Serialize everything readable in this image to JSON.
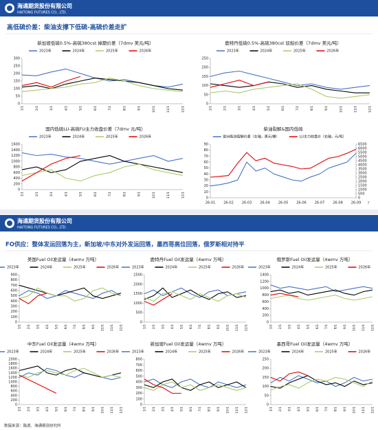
{
  "header": {
    "company_cn": "海通期货股份有限公司",
    "company_en": "HAITONG FUTURES CO., LTD."
  },
  "slide1_title": "高低硫价差：柴油支撑下低硫-高硫价差走扩",
  "page_number": "7",
  "slide2_title": "FO供应：整体发运回落为主，新加坡/中东对外发运回落，墨西哥高位回落，俄罗斯相对持平",
  "source": "数据来源：路透、海通期货研究所",
  "chart_data": [
    {
      "type": "line",
      "title": "新加坡低硫0.5%-高硫380cst 掉期价差（7dmv 美元/吨）",
      "categories": [
        "1/1",
        "2/1",
        "3/1",
        "4/1",
        "5/1",
        "6/1",
        "7/1",
        "8/1",
        "9/1",
        "10/1",
        "11/1",
        "12/1"
      ],
      "ylim": [
        0,
        300
      ],
      "yticks": [
        0,
        50,
        100,
        150,
        200,
        250,
        300
      ],
      "series": [
        {
          "name": "2023年",
          "color": "#4472c4",
          "values": [
            190,
            185,
            210,
            230,
            200,
            170,
            150,
            160,
            140,
            120,
            110,
            130
          ]
        },
        {
          "name": "2024年",
          "color": "#000000",
          "values": [
            110,
            120,
            100,
            130,
            150,
            170,
            160,
            150,
            140,
            120,
            100,
            90
          ]
        },
        {
          "name": "2025年",
          "color": "#a9c96a",
          "values": [
            80,
            90,
            100,
            110,
            130,
            140,
            170,
            150,
            120,
            100,
            90,
            80
          ]
        },
        {
          "name": "2026年",
          "color": "#e00000",
          "values": [
            120,
            140,
            110,
            150,
            180,
            null,
            null,
            null,
            null,
            null,
            null,
            null
          ]
        }
      ]
    },
    {
      "type": "line",
      "title": "鹿特丹低硫0.5%-高硫380cst 驳船价差（7dmv 美元/吨）",
      "categories": [
        "1/1",
        "2/1",
        "3/1",
        "4/1",
        "5/1",
        "6/1",
        "7/1",
        "8/1",
        "9/1",
        "10/1",
        "11/1",
        "12/1"
      ],
      "ylim": [
        0,
        250
      ],
      "yticks": [
        0,
        50,
        100,
        150,
        200,
        250
      ],
      "series": [
        {
          "name": "2023年",
          "color": "#4472c4",
          "values": [
            150,
            170,
            180,
            160,
            140,
            120,
            100,
            110,
            90,
            80,
            90,
            100
          ]
        },
        {
          "name": "2024年",
          "color": "#000000",
          "values": [
            110,
            100,
            90,
            100,
            120,
            110,
            90,
            100,
            80,
            70,
            60,
            60
          ]
        },
        {
          "name": "2025年",
          "color": "#a9c96a",
          "values": [
            60,
            70,
            60,
            80,
            90,
            100,
            110,
            80,
            40,
            30,
            40,
            50
          ]
        },
        {
          "name": "2026年",
          "color": "#e00000",
          "values": [
            90,
            110,
            130,
            100,
            120,
            null,
            null,
            null,
            null,
            null,
            null,
            null
          ]
        }
      ]
    },
    {
      "type": "line",
      "title": "国内低硫LU-高硫FU主力收盘价差（7dmv 元/吨）",
      "categories": [
        "1/1",
        "2/1",
        "3/1",
        "4/1",
        "5/1",
        "6/1",
        "7/1",
        "8/1",
        "9/1",
        "10/1",
        "11/1",
        "12/1"
      ],
      "ylim": [
        0,
        1600
      ],
      "yticks": [
        0,
        200,
        400,
        600,
        800,
        1000,
        1200,
        1400,
        1600
      ],
      "series": [
        {
          "name": "2023年",
          "color": "#4472c4",
          "values": [
            1300,
            1200,
            1250,
            1150,
            1100,
            1000,
            900,
            1000,
            1100,
            1200,
            1000,
            1100
          ]
        },
        {
          "name": "2024年",
          "color": "#000000",
          "values": [
            700,
            800,
            600,
            700,
            1000,
            1100,
            1200,
            1000,
            900,
            800,
            700,
            600
          ]
        },
        {
          "name": "2025年",
          "color": "#a9c96a",
          "values": [
            500,
            600,
            700,
            400,
            300,
            500,
            600,
            800,
            900,
            700,
            600,
            500
          ]
        },
        {
          "name": "2026年",
          "color": "#e00000",
          "values": [
            300,
            600,
            900,
            1100,
            1200,
            null,
            null,
            null,
            null,
            null,
            null,
            null
          ]
        }
      ]
    },
    {
      "type": "line",
      "title": "柴油裂解&国内低硫",
      "categories": [
        "26-01",
        null,
        "26-02",
        null,
        "26-03",
        null,
        "26-04",
        null,
        "26-05",
        null,
        "26-06",
        null,
        "26-07",
        null,
        "26-08",
        null,
        "26-09"
      ],
      "ylim": [
        0,
        90
      ],
      "yticks": [
        0,
        10,
        20,
        30,
        40,
        50,
        60,
        70,
        80,
        90
      ],
      "y2lim": [
        0,
        6500
      ],
      "y2ticks": [
        0,
        500,
        1000,
        1500,
        2000,
        2500,
        3000,
        3500,
        4000,
        4500,
        5000,
        5500,
        6000,
        6500
      ],
      "series": [
        {
          "name": "欧洲柴油裂解价差（左轴，美元/桶）",
          "color": "#4472c4",
          "values": [
            20,
            22,
            25,
            30,
            60,
            45,
            50,
            40,
            35,
            30,
            28,
            35,
            40,
            50,
            55,
            60,
            75
          ]
        },
        {
          "name": "LU主力收盘价（右轴，元/吨）",
          "color": "#e00000",
          "axis": "y2",
          "values": [
            2500,
            2600,
            2700,
            4200,
            5500,
            4500,
            4800,
            4200,
            4000,
            3800,
            3500,
            3600,
            4200,
            4800,
            5000,
            5400,
            5900
          ]
        }
      ]
    },
    {
      "type": "line",
      "title": "美国Fuel Oil发运量（4wmv 万吨）",
      "categories": [
        "1/1",
        "2/1",
        "3/1",
        "4/1",
        "5/1",
        "6/1",
        "7/1",
        "8/1",
        "9/1",
        "10/1",
        "11/1",
        "12/1"
      ],
      "ylim": [
        0,
        900
      ],
      "yticks": [
        0,
        100,
        200,
        300,
        400,
        500,
        600,
        700,
        800,
        900
      ],
      "series": [
        {
          "name": "2023年",
          "color": "#4472c4",
          "values": [
            500,
            600,
            550,
            450,
            500,
            600,
            550,
            500,
            450,
            550,
            600,
            500
          ]
        },
        {
          "name": "2024年",
          "color": "#000000",
          "values": [
            700,
            650,
            600,
            550,
            500,
            550,
            600,
            650,
            500,
            450,
            500,
            550
          ]
        },
        {
          "name": "2025年",
          "color": "#a9c96a",
          "values": [
            450,
            500,
            650,
            550,
            500,
            500,
            400,
            450,
            600,
            650,
            550,
            500
          ]
        },
        {
          "name": "2026年",
          "color": "#e00000",
          "values": [
            450,
            350,
            500,
            550,
            null,
            null,
            null,
            null,
            null,
            null,
            null,
            null
          ]
        }
      ]
    },
    {
      "type": "line",
      "title": "鹿特丹Fuel Oil发运量（4wmv 万吨）",
      "categories": [
        "1/1",
        "2/1",
        "3/1",
        "4/1",
        "5/1",
        "6/1",
        "7/1",
        "8/1",
        "9/1",
        "10/1",
        "11/1",
        "12/1"
      ],
      "ylim": [
        0,
        2500
      ],
      "yticks": [
        0,
        500,
        1000,
        1500,
        2000,
        2500
      ],
      "series": [
        {
          "name": "2023年",
          "color": "#4472c4",
          "values": [
            1500,
            1700,
            1400,
            1600,
            1800,
            1500,
            1300,
            1600,
            1700,
            1400,
            1500,
            1600
          ]
        },
        {
          "name": "2024年",
          "color": "#000000",
          "values": [
            1200,
            1400,
            1800,
            1300,
            1500,
            1700,
            1400,
            1200,
            1500,
            1600,
            1300,
            1400
          ]
        },
        {
          "name": "2025年",
          "color": "#a9c96a",
          "values": [
            1300,
            1100,
            1500,
            1600,
            1400,
            1200,
            1500,
            1300,
            1100,
            1400,
            1500,
            1300
          ]
        },
        {
          "name": "2026年",
          "color": "#e00000",
          "values": [
            1100,
            900,
            1200,
            1500,
            null,
            null,
            null,
            null,
            null,
            null,
            null,
            null
          ]
        }
      ]
    },
    {
      "type": "line",
      "title": "俄罗斯Fuel Oil发运量（4wmv 万吨）",
      "categories": [
        "1/1",
        "2/1",
        "3/1",
        "4/1",
        "5/1",
        "6/1",
        "7/1",
        "8/1",
        "9/1",
        "10/1",
        "11/1",
        "12/1"
      ],
      "ylim": [
        0,
        1400
      ],
      "yticks": [
        0,
        200,
        400,
        600,
        800,
        1000,
        1200,
        1400
      ],
      "series": [
        {
          "name": "2023年",
          "color": "#4472c4",
          "values": [
            1100,
            1000,
            1050,
            1000,
            950,
            1000,
            1050,
            900,
            950,
            1000,
            1050,
            1000
          ]
        },
        {
          "name": "2024年",
          "color": "#000000",
          "values": [
            900,
            950,
            850,
            900,
            800,
            850,
            900,
            950,
            850,
            800,
            900,
            950
          ]
        },
        {
          "name": "2025年",
          "color": "#a9c96a",
          "values": [
            700,
            750,
            800,
            700,
            650,
            700,
            750,
            800,
            700,
            650,
            700,
            750
          ]
        },
        {
          "name": "2026年",
          "color": "#e00000",
          "values": [
            800,
            850,
            800,
            750,
            null,
            null,
            null,
            null,
            null,
            null,
            null,
            null
          ]
        }
      ]
    },
    {
      "type": "line",
      "title": "中东Fuel Oil发运量（4wmv 万吨）",
      "categories": [
        "1/1",
        "2/1",
        "3/1",
        "4/1",
        "5/1",
        "6/1",
        "7/1",
        "8/1",
        "9/1",
        "10/1",
        "11/1",
        "12/1"
      ],
      "ylim": [
        0,
        2000
      ],
      "yticks": [
        0,
        200,
        400,
        600,
        800,
        1000,
        1200,
        1400,
        1600,
        1800,
        2000
      ],
      "series": [
        {
          "name": "2023年",
          "color": "#4472c4",
          "values": [
            1200,
            1400,
            1300,
            1600,
            1500,
            1300,
            1200,
            1400,
            1300,
            1200,
            1100,
            1200
          ]
        },
        {
          "name": "2024年",
          "color": "#000000",
          "values": [
            1500,
            1600,
            1700,
            1400,
            1300,
            1500,
            1600,
            1400,
            1300,
            1200,
            1300,
            1400
          ]
        },
        {
          "name": "2025年",
          "color": "#a9c96a",
          "values": [
            1300,
            1200,
            1400,
            1500,
            1400,
            1300,
            1500,
            1600,
            1400,
            1200,
            1300,
            1200
          ]
        },
        {
          "name": "2026年",
          "color": "#e00000",
          "values": [
            1300,
            1100,
            900,
            700,
            500,
            null,
            null,
            null,
            null,
            null,
            null,
            null
          ]
        }
      ]
    },
    {
      "type": "line",
      "title": "新加坡Fuel Oil发运量（4wmv 万吨）",
      "categories": [
        "1/1",
        "2/1",
        "3/1",
        "4/1",
        "5/1",
        "6/1",
        "7/1",
        "8/1",
        "9/1",
        "10/1",
        "11/1",
        "12/1"
      ],
      "ylim": [
        0,
        800
      ],
      "yticks": [
        0,
        100,
        200,
        300,
        400,
        500,
        600,
        700,
        800
      ],
      "series": [
        {
          "name": "2023年",
          "color": "#4472c4",
          "values": [
            400,
            450,
            350,
            300,
            400,
            450,
            350,
            300,
            400,
            350,
            300,
            350
          ]
        },
        {
          "name": "2024年",
          "color": "#000000",
          "values": [
            350,
            300,
            400,
            450,
            300,
            250,
            350,
            400,
            300,
            350,
            400,
            300
          ]
        },
        {
          "name": "2025年",
          "color": "#a9c96a",
          "values": [
            300,
            250,
            350,
            400,
            300,
            350,
            250,
            300,
            350,
            300,
            250,
            300
          ]
        },
        {
          "name": "2026年",
          "color": "#e00000",
          "values": [
            450,
            350,
            300,
            200,
            200,
            null,
            null,
            null,
            null,
            null,
            null,
            null
          ]
        }
      ]
    },
    {
      "type": "line",
      "title": "墨西哥Fuel Oil发运量（4wmv 万吨）",
      "categories": [
        "1/1",
        "2/1",
        "3/1",
        "4/1",
        "5/1",
        "6/1",
        "7/1",
        "8/1",
        "9/1",
        "10/1",
        "11/1",
        "12/1"
      ],
      "ylim": [
        0,
        250
      ],
      "yticks": [
        0,
        50,
        100,
        150,
        200,
        250
      ],
      "series": [
        {
          "name": "2023年",
          "color": "#4472c4",
          "values": [
            120,
            150,
            130,
            160,
            140,
            120,
            130,
            100,
            120,
            150,
            130,
            140
          ]
        },
        {
          "name": "2024年",
          "color": "#000000",
          "values": [
            100,
            90,
            120,
            140,
            160,
            130,
            110,
            120,
            100,
            130,
            110,
            120
          ]
        },
        {
          "name": "2025年",
          "color": "#a9c96a",
          "values": [
            80,
            100,
            110,
            90,
            120,
            140,
            130,
            150,
            140,
            120,
            100,
            130
          ]
        },
        {
          "name": "2026年",
          "color": "#e00000",
          "values": [
            150,
            130,
            170,
            180,
            160,
            null,
            null,
            null,
            null,
            null,
            null,
            null
          ]
        }
      ]
    }
  ]
}
